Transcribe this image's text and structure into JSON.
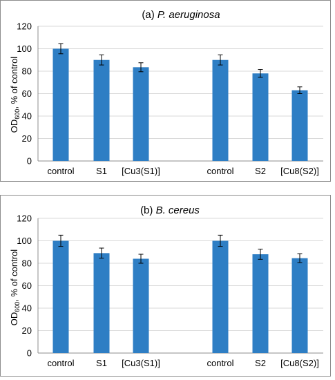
{
  "chart_data": [
    {
      "type": "bar",
      "title_prefix": "(a) ",
      "title_species": "P. aeruginosa",
      "ylabel_main": "OD",
      "ylabel_sub": "600",
      "ylabel_rest": ", % of control",
      "ylim": [
        0,
        120
      ],
      "yticks": [
        "0",
        "20",
        "40",
        "60",
        "80",
        "100",
        "120"
      ],
      "grid": true,
      "color": "#2E7EC4",
      "categories": [
        "control",
        "S1",
        "[Cu3(S1)]",
        "",
        "control",
        "S2",
        "[Cu8(S2)]"
      ],
      "values": [
        100,
        90,
        83.5,
        null,
        90,
        78,
        63
      ],
      "errors": [
        4.5,
        4.5,
        4,
        null,
        4.5,
        3.5,
        3
      ]
    },
    {
      "type": "bar",
      "title_prefix": "(b) ",
      "title_species": "B. cereus",
      "ylabel_main": "OD",
      "ylabel_sub": "600",
      "ylabel_rest": ", % of control",
      "ylim": [
        0,
        120
      ],
      "yticks": [
        "0",
        "20",
        "40",
        "60",
        "80",
        "100",
        "120"
      ],
      "grid": true,
      "color": "#2E7EC4",
      "categories": [
        "control",
        "S1",
        "[Cu3(S1)]",
        "",
        "control",
        "S2",
        "[Cu8(S2)]"
      ],
      "values": [
        100,
        89,
        84,
        null,
        100,
        88,
        84.5
      ],
      "errors": [
        5,
        4.5,
        4,
        null,
        5,
        4.5,
        4
      ]
    }
  ]
}
